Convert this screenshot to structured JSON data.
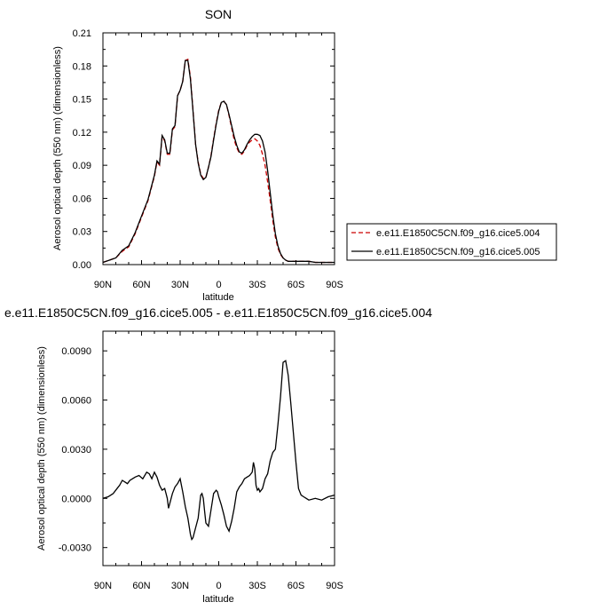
{
  "chart_data": [
    {
      "type": "line",
      "title": "SON",
      "xlabel": "latitude",
      "ylabel": "Aerosol optical depth (550 nm) (dimensionless)",
      "xlim": [
        -90,
        90
      ],
      "ylim": [
        0,
        0.21
      ],
      "xticks": [
        -90,
        -60,
        -30,
        0,
        30,
        60,
        90
      ],
      "xtick_labels": [
        "90N",
        "60N",
        "30N",
        "0",
        "30S",
        "60S",
        "90S"
      ],
      "yticks": [
        0,
        0.03,
        0.06,
        0.09,
        0.12,
        0.15,
        0.18,
        0.21
      ],
      "ytick_labels": [
        "0.00",
        "0.03",
        "0.06",
        "0.09",
        "0.12",
        "0.15",
        "0.18",
        "0.21"
      ],
      "legend_position": "right",
      "x": [
        -90,
        -85,
        -80,
        -75,
        -70,
        -65,
        -60,
        -55,
        -50,
        -48,
        -46,
        -44,
        -42,
        -40,
        -38,
        -36,
        -34,
        -32,
        -30,
        -28,
        -26,
        -24,
        -22,
        -20,
        -18,
        -16,
        -14,
        -12,
        -10,
        -8,
        -6,
        -4,
        -2,
        0,
        2,
        4,
        6,
        8,
        10,
        12,
        14,
        16,
        18,
        20,
        22,
        24,
        26,
        28,
        30,
        32,
        34,
        36,
        38,
        40,
        42,
        44,
        46,
        48,
        50,
        52,
        54,
        56,
        58,
        60,
        62,
        64,
        66,
        68,
        70,
        75,
        80,
        85,
        90
      ],
      "series": [
        {
          "name": "e.e11.E1850C5CN.f09_g16.cice5.004",
          "color": "#cc0000",
          "dash": "dashed",
          "values": [
            0.002,
            0.004,
            0.006,
            0.012,
            0.016,
            0.028,
            0.043,
            0.058,
            0.08,
            0.093,
            0.09,
            0.116,
            0.112,
            0.1,
            0.1,
            0.122,
            0.125,
            0.153,
            0.158,
            0.166,
            0.185,
            0.186,
            0.17,
            0.14,
            0.109,
            0.093,
            0.082,
            0.078,
            0.079,
            0.088,
            0.099,
            0.114,
            0.128,
            0.14,
            0.147,
            0.148,
            0.145,
            0.135,
            0.124,
            0.113,
            0.106,
            0.101,
            0.1,
            0.103,
            0.108,
            0.111,
            0.113,
            0.114,
            0.112,
            0.108,
            0.1,
            0.09,
            0.075,
            0.058,
            0.04,
            0.025,
            0.015,
            0.009,
            0.006,
            0.004,
            0.003,
            0.003,
            0.003,
            0.003,
            0.003,
            0.003,
            0.003,
            0.003,
            0.003,
            0.002,
            0.002,
            0.002,
            0.002
          ]
        },
        {
          "name": "e.e11.E1850C5CN.f09_g16.cice5.005",
          "color": "#000000",
          "dash": "solid",
          "values": [
            0.002,
            0.004,
            0.006,
            0.013,
            0.017,
            0.029,
            0.044,
            0.059,
            0.081,
            0.094,
            0.091,
            0.117,
            0.113,
            0.101,
            0.101,
            0.123,
            0.126,
            0.153,
            0.158,
            0.166,
            0.185,
            0.185,
            0.168,
            0.139,
            0.109,
            0.092,
            0.081,
            0.077,
            0.079,
            0.088,
            0.098,
            0.113,
            0.127,
            0.139,
            0.147,
            0.148,
            0.145,
            0.136,
            0.126,
            0.116,
            0.108,
            0.102,
            0.101,
            0.104,
            0.109,
            0.113,
            0.116,
            0.118,
            0.118,
            0.117,
            0.112,
            0.102,
            0.085,
            0.065,
            0.045,
            0.028,
            0.017,
            0.01,
            0.006,
            0.004,
            0.003,
            0.003,
            0.003,
            0.003,
            0.003,
            0.003,
            0.003,
            0.003,
            0.003,
            0.002,
            0.002,
            0.002,
            0.002
          ]
        }
      ]
    },
    {
      "type": "line",
      "title": "e.e11.E1850C5CN.f09_g16.cice5.005 - e.e11.E1850C5CN.f09_g16.cice5.004",
      "xlabel": "latitude",
      "ylabel": "Aerosol optical depth (550 nm) (dimensionless)",
      "xlim": [
        -90,
        90
      ],
      "ylim": [
        -0.0041,
        0.0102
      ],
      "xticks": [
        -90,
        -60,
        -30,
        0,
        30,
        60,
        90
      ],
      "xtick_labels": [
        "90N",
        "60N",
        "30N",
        "0",
        "30S",
        "60S",
        "90S"
      ],
      "yticks": [
        -0.003,
        0,
        0.003,
        0.006,
        0.009
      ],
      "ytick_labels": [
        "-0.0030",
        "0.0000",
        "0.0030",
        "0.0060",
        "0.0090"
      ],
      "x": [
        -90,
        -86,
        -82,
        -79,
        -77,
        -75,
        -73,
        -71,
        -69,
        -67,
        -65,
        -62,
        -59,
        -56,
        -54,
        -52,
        -50,
        -48,
        -46,
        -44,
        -42,
        -41,
        -40,
        -39,
        -38,
        -36,
        -34,
        -32,
        -30,
        -28,
        -26,
        -24,
        -22,
        -21,
        -20,
        -18,
        -16,
        -14,
        -13,
        -12,
        -11,
        -10,
        -8,
        -6,
        -4,
        -2,
        -1,
        0,
        2,
        4,
        6,
        8,
        10,
        12,
        14,
        16,
        18,
        20,
        22,
        24,
        26,
        27,
        28,
        29,
        30,
        31,
        32,
        34,
        36,
        38,
        40,
        42,
        44,
        46,
        48,
        50,
        52,
        54,
        56,
        58,
        60,
        62,
        64,
        66,
        68,
        70,
        75,
        80,
        85,
        90
      ],
      "series": [
        {
          "name": "e.e11.E1850C5CN.f09_g16.cice5.005 - e.e11.E1850C5CN.f09_g16.cice5.004",
          "color": "#000000",
          "dash": "solid",
          "values": [
            0.0,
            0.0001,
            0.0003,
            0.0006,
            0.0008,
            0.0011,
            0.001,
            0.0009,
            0.0011,
            0.0012,
            0.0013,
            0.0014,
            0.0012,
            0.0016,
            0.0015,
            0.0012,
            0.0016,
            0.0013,
            0.0008,
            0.0005,
            0.0006,
            0.0003,
            0.0,
            -0.0006,
            -0.0003,
            0.0003,
            0.0007,
            0.0009,
            0.0012,
            0.0004,
            -0.0005,
            -0.0012,
            -0.0022,
            -0.0025,
            -0.0024,
            -0.0018,
            -0.0012,
            0.0002,
            0.0003,
            0.0,
            -0.0008,
            -0.0015,
            -0.0017,
            -0.0007,
            0.0003,
            0.0005,
            0.0004,
            0.0001,
            -0.0004,
            -0.001,
            -0.0017,
            -0.002,
            -0.0014,
            -0.0006,
            0.0004,
            0.0007,
            0.0009,
            0.0012,
            0.0013,
            0.0014,
            0.0016,
            0.0022,
            0.0018,
            0.0008,
            0.0005,
            0.0006,
            0.0004,
            0.0006,
            0.0012,
            0.0015,
            0.0023,
            0.0028,
            0.003,
            0.0045,
            0.0062,
            0.0083,
            0.0084,
            0.0075,
            0.0058,
            0.004,
            0.0022,
            0.0006,
            0.0002,
            0.0001,
            0.0,
            -0.0001,
            0.0,
            -0.0001,
            0.0001,
            0.0002
          ]
        }
      ]
    }
  ]
}
